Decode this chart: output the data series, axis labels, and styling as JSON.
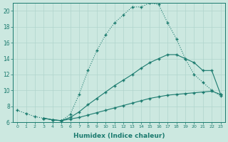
{
  "xlabel": "Humidex (Indice chaleur)",
  "background_color": "#cce8e0",
  "line_color": "#1a7a6e",
  "grid_color": "#b0d4cc",
  "xlim": [
    -0.5,
    23.5
  ],
  "ylim": [
    6,
    21
  ],
  "yticks": [
    6,
    8,
    10,
    12,
    14,
    16,
    18,
    20
  ],
  "xticks": [
    0,
    1,
    2,
    3,
    4,
    5,
    6,
    7,
    8,
    9,
    10,
    11,
    12,
    13,
    14,
    15,
    16,
    17,
    18,
    19,
    20,
    21,
    22,
    23
  ],
  "line1_x": [
    0,
    1,
    2,
    3,
    4,
    5,
    6,
    7,
    8,
    9,
    10,
    11,
    12,
    13,
    14,
    15,
    16,
    17,
    18,
    19,
    20,
    21,
    22,
    23
  ],
  "line1_y": [
    7.5,
    7.1,
    6.7,
    6.5,
    6.3,
    6.2,
    7.0,
    9.5,
    12.5,
    15.0,
    17.0,
    18.5,
    19.5,
    20.5,
    20.5,
    21.0,
    20.8,
    18.5,
    16.5,
    14.0,
    12.0,
    11.0,
    10.0,
    9.3
  ],
  "line2_x": [
    3,
    4,
    5,
    6,
    7,
    8,
    9,
    10,
    11,
    12,
    13,
    14,
    15,
    16,
    17,
    18,
    19,
    20,
    21,
    22,
    23
  ],
  "line2_y": [
    6.5,
    6.3,
    6.2,
    6.6,
    7.3,
    8.2,
    9.0,
    9.8,
    10.6,
    11.3,
    12.0,
    12.8,
    13.5,
    14.0,
    14.5,
    14.5,
    14.0,
    13.5,
    12.5,
    12.5,
    9.5
  ],
  "line3_x": [
    3,
    4,
    5,
    6,
    7,
    8,
    9,
    10,
    11,
    12,
    13,
    14,
    15,
    16,
    17,
    18,
    19,
    20,
    21,
    22,
    23
  ],
  "line3_y": [
    6.5,
    6.3,
    6.2,
    6.4,
    6.6,
    6.9,
    7.2,
    7.5,
    7.8,
    8.1,
    8.4,
    8.7,
    9.0,
    9.2,
    9.4,
    9.5,
    9.6,
    9.7,
    9.8,
    9.9,
    9.5
  ]
}
